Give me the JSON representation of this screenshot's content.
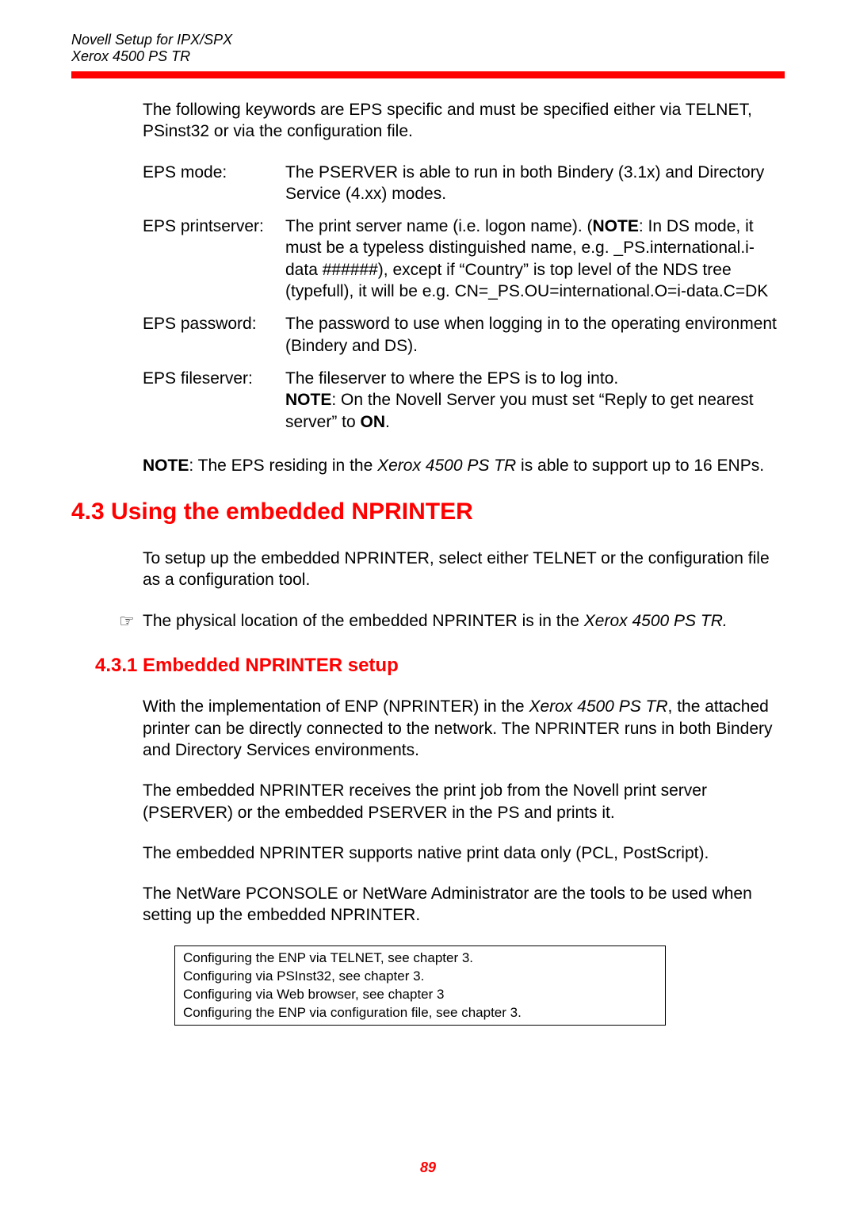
{
  "header": {
    "line1": "Novell Setup for IPX/SPX",
    "line2": "Xerox 4500 PS TR"
  },
  "colors": {
    "accent": "#ff0000",
    "text": "#000000",
    "background": "#ffffff"
  },
  "intro": "The following keywords are EPS specific and must be specified either via TELNET, PSinst32 or via the configuration file.",
  "defs": {
    "eps_mode": {
      "term": "EPS mode:",
      "desc": "The PSERVER is able to run in both Bindery (3.1x) and Directory Service (4.xx) modes."
    },
    "eps_printserver": {
      "term": "EPS printserver:",
      "pre": "The print server name (i.e. logon name). (",
      "note_label": "NOTE",
      "post": ": In DS mode, it must be a typeless distinguished name,   e.g. _PS.international.i-data ######), except if “Country” is top level of the NDS tree (typefull), it will be e.g. CN=_PS.OU=international.O=i-data.C=DK"
    },
    "eps_password": {
      "term": "EPS password:",
      "desc": "The password to use when logging in to the operating environment (Bindery and DS)."
    },
    "eps_fileserver": {
      "term": "EPS fileserver:",
      "line1": "The fileserver to where the EPS is to log into.",
      "note_label": "NOTE",
      "line2_a": ": On the Novell Server you must set “Reply to get nearest server” to ",
      "on": "ON",
      "line2_b": "."
    }
  },
  "note": {
    "label": "NOTE",
    "text_a": ": The EPS residing in the ",
    "product": "Xerox 4500 PS TR",
    "text_b": " is able to support up to 16 ENPs."
  },
  "section": {
    "heading": "4.3 Using the embedded NPRINTER",
    "p1": "To setup up the embedded NPRINTER, select either TELNET or the configuration file as a configuration tool.",
    "pointer_a": "The physical location of the embedded NPRINTER is in the  ",
    "pointer_product": "Xerox 4500 PS TR",
    "pointer_b": "."
  },
  "subsection": {
    "heading": "4.3.1 Embedded NPRINTER setup",
    "p1_a": "With the implementation of ENP (NPRINTER) in the  ",
    "p1_product": "Xerox 4500 PS TR",
    "p1_b": ", the attached printer can be directly connected to the network. The NPRINTER runs in both Bindery and Directory Services environments.",
    "p2": "The embedded NPRINTER receives the print job from the Novell print server (PSERVER) or the embedded PSERVER in the PS and prints it.",
    "p3": "The embedded NPRINTER supports native print data only (PCL, PostScript).",
    "p4": "The NetWare PCONSOLE or NetWare Administrator are the tools to be used when setting up the embedded NPRINTER."
  },
  "refbox": {
    "l1": "Configuring the ENP via TELNET, see chapter 3.",
    "l2": "Configuring via PSInst32, see chapter 3.",
    "l3": "Configuring via Web browser, see chapter 3",
    "l4": "Configuring the ENP via configuration file, see chapter 3."
  },
  "page_number": "89"
}
